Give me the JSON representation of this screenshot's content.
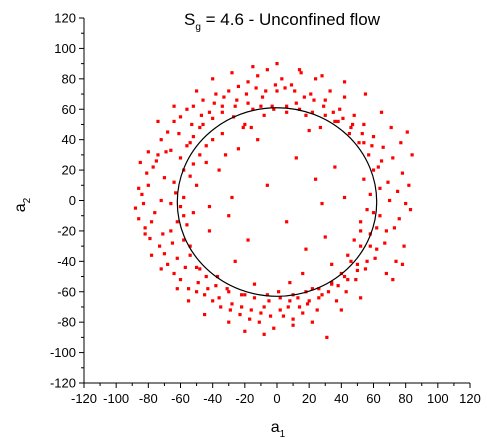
{
  "chart_data": {
    "type": "scatter",
    "title": {
      "main": "S",
      "sub": "g",
      "rest": " = 4.6 - Unconfined flow"
    },
    "xlabel": {
      "main": "a",
      "sub": "1"
    },
    "ylabel": {
      "main": "a",
      "sub": "2"
    },
    "xlim": [
      -120,
      120
    ],
    "ylim": [
      -120,
      120
    ],
    "xticks": [
      -120,
      -100,
      -80,
      -60,
      -40,
      -20,
      0,
      20,
      40,
      60,
      80,
      100,
      120
    ],
    "yticks": [
      -120,
      -100,
      -80,
      -60,
      -40,
      -20,
      0,
      20,
      40,
      60,
      80,
      100,
      120
    ],
    "xtick_labels": [
      "-120",
      "-100",
      "-80",
      "-60",
      "-40",
      "-20",
      "0",
      "20",
      "40",
      "60",
      "80",
      "100",
      "120"
    ],
    "ytick_labels": [
      "-120",
      "-100",
      "-80",
      "-60",
      "-40",
      "-20",
      "0",
      "20",
      "40",
      "60",
      "80",
      "100",
      "120"
    ],
    "grid": false,
    "point_color": "#ff0000",
    "circle": {
      "center": [
        0,
        -1
      ],
      "radius": 62,
      "color": "#000000"
    },
    "series": [
      {
        "values": [
          [
            -88,
            -5
          ],
          [
            -86,
            -12
          ],
          [
            -84,
            4
          ],
          [
            -82,
            -18
          ],
          [
            -80,
            10
          ],
          [
            -79,
            -25
          ],
          [
            -77,
            22
          ],
          [
            -76,
            -8
          ],
          [
            -74,
            30
          ],
          [
            -73,
            -30
          ],
          [
            -72,
            40
          ],
          [
            -72,
            0
          ],
          [
            -70,
            -35
          ],
          [
            -70,
            15
          ],
          [
            -68,
            -42
          ],
          [
            -68,
            45
          ],
          [
            -66,
            -20
          ],
          [
            -66,
            33
          ],
          [
            -64,
            -48
          ],
          [
            -64,
            52
          ],
          [
            -63,
            5
          ],
          [
            -62,
            -38
          ],
          [
            -60,
            55
          ],
          [
            -60,
            -52
          ],
          [
            -58,
            20
          ],
          [
            -58,
            -10
          ],
          [
            -56,
            60
          ],
          [
            -55,
            -58
          ],
          [
            -54,
            38
          ],
          [
            -54,
            -30
          ],
          [
            -52,
            62
          ],
          [
            -50,
            -60
          ],
          [
            -50,
            10
          ],
          [
            -48,
            48
          ],
          [
            -48,
            -45
          ],
          [
            -46,
            66
          ],
          [
            -45,
            -62
          ],
          [
            -44,
            25
          ],
          [
            -42,
            -20
          ],
          [
            -42,
            58
          ],
          [
            -40,
            -66
          ],
          [
            -40,
            40
          ],
          [
            -38,
            70
          ],
          [
            -37,
            -50
          ],
          [
            -35,
            -70
          ],
          [
            -34,
            62
          ],
          [
            -32,
            30
          ],
          [
            -31,
            -58
          ],
          [
            -30,
            72
          ],
          [
            -29,
            -72
          ],
          [
            -27,
            55
          ],
          [
            -26,
            -40
          ],
          [
            -24,
            75
          ],
          [
            -23,
            -75
          ],
          [
            -21,
            48
          ],
          [
            -20,
            -62
          ],
          [
            -18,
            78
          ],
          [
            -17,
            -78
          ],
          [
            -15,
            60
          ],
          [
            -14,
            -55
          ],
          [
            -12,
            82
          ],
          [
            -11,
            -80
          ],
          [
            -9,
            68
          ],
          [
            -8,
            -70
          ],
          [
            -6,
            86
          ],
          [
            -5,
            -66
          ],
          [
            -3,
            62
          ],
          [
            -2,
            -84
          ],
          [
            0,
            72
          ],
          [
            1,
            -60
          ],
          [
            3,
            80
          ],
          [
            4,
            -76
          ],
          [
            6,
            58
          ],
          [
            7,
            -70
          ],
          [
            9,
            76
          ],
          [
            10,
            -82
          ],
          [
            12,
            64
          ],
          [
            13,
            -64
          ],
          [
            15,
            84
          ],
          [
            16,
            -74
          ],
          [
            18,
            56
          ],
          [
            19,
            -68
          ],
          [
            21,
            70
          ],
          [
            22,
            -58
          ],
          [
            24,
            80
          ],
          [
            25,
            -72
          ],
          [
            27,
            48
          ],
          [
            28,
            -62
          ],
          [
            30,
            66
          ],
          [
            31,
            -90
          ],
          [
            33,
            72
          ],
          [
            34,
            -55
          ],
          [
            36,
            52
          ],
          [
            37,
            -66
          ],
          [
            39,
            60
          ],
          [
            40,
            -48
          ],
          [
            42,
            68
          ],
          [
            43,
            -60
          ],
          [
            45,
            44
          ],
          [
            46,
            -40
          ],
          [
            48,
            56
          ],
          [
            49,
            -52
          ],
          [
            51,
            38
          ],
          [
            52,
            -30
          ],
          [
            54,
            50
          ],
          [
            55,
            -45
          ],
          [
            57,
            30
          ],
          [
            58,
            -22
          ],
          [
            60,
            42
          ],
          [
            61,
            -38
          ],
          [
            63,
            22
          ],
          [
            64,
            -10
          ],
          [
            66,
            35
          ],
          [
            67,
            -28
          ],
          [
            69,
            12
          ],
          [
            70,
            0
          ],
          [
            72,
            28
          ],
          [
            73,
            -18
          ],
          [
            75,
            6
          ],
          [
            76,
            -12
          ],
          [
            78,
            18
          ],
          [
            80,
            -2
          ],
          [
            82,
            10
          ],
          [
            83,
            -6
          ],
          [
            81,
            45
          ],
          [
            79,
            -30
          ],
          [
            77,
            38
          ],
          [
            74,
            -40
          ],
          [
            71,
            48
          ],
          [
            68,
            -48
          ],
          [
            -86,
            8
          ],
          [
            -83,
            -2
          ],
          [
            -81,
            18
          ],
          [
            -78,
            -14
          ],
          [
            -75,
            26
          ],
          [
            -71,
            -22
          ],
          [
            -69,
            32
          ],
          [
            -65,
            -28
          ],
          [
            -61,
            44
          ],
          [
            -57,
            -44
          ],
          [
            -53,
            50
          ],
          [
            -49,
            -54
          ],
          [
            -47,
            56
          ],
          [
            -43,
            -58
          ],
          [
            -39,
            64
          ],
          [
            -36,
            -64
          ],
          [
            -33,
            68
          ],
          [
            -28,
            -68
          ],
          [
            -25,
            66
          ],
          [
            -22,
            -70
          ],
          [
            -19,
            70
          ],
          [
            -16,
            -72
          ],
          [
            -13,
            74
          ],
          [
            -10,
            -74
          ],
          [
            -7,
            72
          ],
          [
            -4,
            -76
          ],
          [
            -1,
            76
          ],
          [
            2,
            -72
          ],
          [
            5,
            74
          ],
          [
            8,
            -66
          ],
          [
            11,
            72
          ],
          [
            14,
            -70
          ],
          [
            17,
            68
          ],
          [
            20,
            -66
          ],
          [
            23,
            66
          ],
          [
            26,
            -64
          ],
          [
            29,
            62
          ],
          [
            32,
            -60
          ],
          [
            35,
            58
          ],
          [
            38,
            -56
          ],
          [
            41,
            54
          ],
          [
            44,
            -52
          ],
          [
            47,
            50
          ],
          [
            50,
            -46
          ],
          [
            53,
            44
          ],
          [
            56,
            -40
          ],
          [
            59,
            36
          ],
          [
            62,
            -32
          ],
          [
            65,
            26
          ],
          [
            68,
            -20
          ],
          [
            -66,
            -2
          ],
          [
            -64,
            12
          ],
          [
            -62,
            -14
          ],
          [
            -60,
            28
          ],
          [
            -58,
            -26
          ],
          [
            -56,
            36
          ],
          [
            -54,
            -36
          ],
          [
            -52,
            42
          ],
          [
            -50,
            -44
          ],
          [
            -46,
            50
          ],
          [
            -44,
            -50
          ],
          [
            -40,
            54
          ],
          [
            -38,
            -56
          ],
          [
            -34,
            58
          ],
          [
            -30,
            -60
          ],
          [
            -26,
            62
          ],
          [
            -22,
            -62
          ],
          [
            -18,
            64
          ],
          [
            -14,
            -64
          ],
          [
            -10,
            62
          ],
          [
            -6,
            -62
          ],
          [
            -2,
            60
          ],
          [
            2,
            -64
          ],
          [
            6,
            62
          ],
          [
            10,
            -62
          ],
          [
            14,
            60
          ],
          [
            18,
            -60
          ],
          [
            22,
            58
          ],
          [
            26,
            -58
          ],
          [
            30,
            56
          ],
          [
            34,
            -54
          ],
          [
            38,
            52
          ],
          [
            42,
            -50
          ],
          [
            46,
            48
          ],
          [
            50,
            -42
          ],
          [
            54,
            38
          ],
          [
            58,
            -30
          ],
          [
            60,
            20
          ],
          [
            62,
            -18
          ],
          [
            64,
            8
          ],
          [
            -45,
            -75
          ],
          [
            -55,
            -66
          ],
          [
            -62,
            -58
          ],
          [
            -30,
            -80
          ],
          [
            -20,
            -86
          ],
          [
            -8,
            -88
          ],
          [
            10,
            -78
          ],
          [
            22,
            -80
          ],
          [
            40,
            -72
          ],
          [
            52,
            -64
          ],
          [
            -50,
            72
          ],
          [
            -40,
            80
          ],
          [
            -28,
            84
          ],
          [
            -15,
            88
          ],
          [
            0,
            90
          ],
          [
            14,
            86
          ],
          [
            28,
            82
          ],
          [
            42,
            78
          ],
          [
            55,
            70
          ],
          [
            65,
            58
          ],
          [
            -72,
            -45
          ],
          [
            -78,
            -36
          ],
          [
            -82,
            -22
          ],
          [
            -85,
            25
          ],
          [
            -80,
            32
          ],
          [
            -74,
            52
          ],
          [
            -64,
            62
          ],
          [
            72,
            -52
          ],
          [
            78,
            -42
          ],
          [
            84,
            30
          ],
          [
            -36,
            20
          ],
          [
            -30,
            -10
          ],
          [
            -24,
            34
          ],
          [
            -18,
            -26
          ],
          [
            -12,
            40
          ],
          [
            -6,
            10
          ],
          [
            6,
            -14
          ],
          [
            12,
            28
          ],
          [
            18,
            -32
          ],
          [
            24,
            14
          ],
          [
            30,
            -24
          ],
          [
            36,
            22
          ],
          [
            -42,
            -4
          ],
          [
            42,
            2
          ],
          [
            -28,
            2
          ],
          [
            28,
            -2
          ],
          [
            -16,
            48
          ],
          [
            16,
            -48
          ],
          [
            -48,
            30
          ],
          [
            48,
            -26
          ],
          [
            -58,
            2
          ],
          [
            -56,
            -16
          ],
          [
            -54,
            16
          ],
          [
            -52,
            -8
          ],
          [
            58,
            4
          ],
          [
            56,
            -6
          ],
          [
            54,
            14
          ],
          [
            52,
            -14
          ],
          [
            -20,
            50
          ],
          [
            20,
            46
          ],
          [
            -8,
            56
          ],
          [
            8,
            -54
          ],
          [
            -34,
            44
          ],
          [
            34,
            -42
          ],
          [
            -44,
            36
          ],
          [
            44,
            -36
          ],
          [
            -52,
            24
          ],
          [
            52,
            -20
          ],
          [
            -60,
            -4
          ],
          [
            60,
            -8
          ]
        ]
      }
    ]
  }
}
